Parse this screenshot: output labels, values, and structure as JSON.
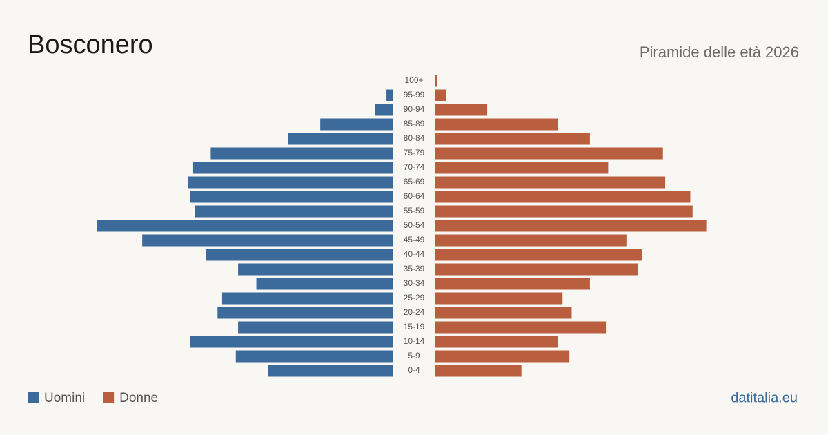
{
  "chart_data": {
    "type": "pyramid",
    "title": "Bosconero",
    "subtitle": "Piramide delle età 2026",
    "source": "datitalia.eu",
    "categories": [
      "100+",
      "95-99",
      "90-94",
      "85-89",
      "80-84",
      "75-79",
      "70-74",
      "65-69",
      "60-64",
      "55-59",
      "50-54",
      "45-49",
      "40-44",
      "35-39",
      "30-34",
      "25-29",
      "20-24",
      "15-19",
      "10-14",
      "5-9",
      "0-4"
    ],
    "xlim": [
      0,
      130
    ],
    "series": [
      {
        "name": "Uomini",
        "color": "#3b6a9b",
        "values": [
          0,
          3,
          8,
          32,
          46,
          80,
          88,
          90,
          89,
          87,
          130,
          110,
          82,
          68,
          60,
          75,
          77,
          68,
          89,
          69,
          55
        ]
      },
      {
        "name": "Donne",
        "color": "#b95f3f",
        "values": [
          1,
          5,
          23,
          54,
          68,
          100,
          76,
          101,
          112,
          113,
          119,
          84,
          91,
          89,
          68,
          56,
          60,
          75,
          54,
          59,
          38
        ]
      }
    ]
  }
}
